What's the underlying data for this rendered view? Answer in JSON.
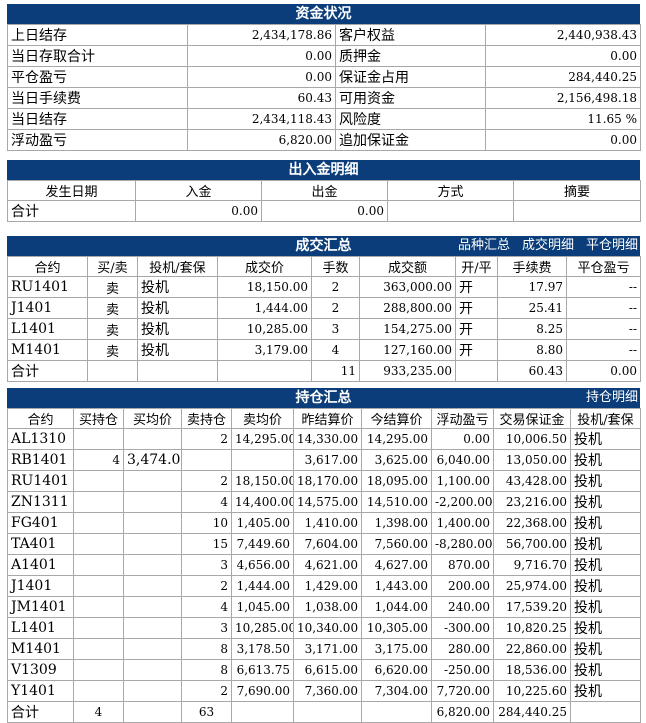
{
  "funds": {
    "title": "资金状况",
    "rows": [
      [
        "上日结存",
        "2,434,178.86",
        "客户权益",
        "2,440,938.43"
      ],
      [
        "当日存取合计",
        "0.00",
        "质押金",
        "0.00"
      ],
      [
        "平仓盈亏",
        "0.00",
        "保证金占用",
        "284,440.25"
      ],
      [
        "当日手续费",
        "60.43",
        "可用资金",
        "2,156,498.18"
      ],
      [
        "当日结存",
        "2,434,118.43",
        "风险度",
        "11.65 %"
      ],
      [
        "浮动盈亏",
        "6,820.00",
        "追加保证金",
        "0.00"
      ]
    ]
  },
  "inout": {
    "title": "出入金明细",
    "headers": [
      "发生日期",
      "入金",
      "出金",
      "方式",
      "摘要"
    ],
    "total": [
      "合计",
      "0.00",
      "0.00",
      "",
      ""
    ]
  },
  "trades": {
    "title": "成交汇总",
    "links": [
      "品种汇总",
      "成交明细",
      "平仓明细"
    ],
    "headers": [
      "合约",
      "买/卖",
      "投机/套保",
      "成交价",
      "手数",
      "成交额",
      "开/平",
      "手续费",
      "平仓盈亏"
    ],
    "rows": [
      [
        "RU1401",
        "卖",
        "投机",
        "18,150.00",
        "2",
        "363,000.00",
        "开",
        "17.97",
        "--"
      ],
      [
        "J1401",
        "卖",
        "投机",
        "1,444.00",
        "2",
        "288,800.00",
        "开",
        "25.41",
        "--"
      ],
      [
        "L1401",
        "卖",
        "投机",
        "10,285.00",
        "3",
        "154,275.00",
        "开",
        "8.25",
        "--"
      ],
      [
        "M1401",
        "卖",
        "投机",
        "3,179.00",
        "4",
        "127,160.00",
        "开",
        "8.80",
        "--"
      ]
    ],
    "total": [
      "合计",
      "",
      "",
      "",
      "11",
      "933,235.00",
      "",
      "60.43",
      "0.00"
    ]
  },
  "positions": {
    "title": "持仓汇总",
    "links": [
      "持仓明细"
    ],
    "headers": [
      "合约",
      "买持仓",
      "买均价",
      "卖持仓",
      "卖均价",
      "昨结算价",
      "今结算价",
      "浮动盈亏",
      "交易保证金",
      "投机/套保"
    ],
    "rows": [
      [
        "AL1310",
        "",
        "",
        "2",
        "14,295.00",
        "14,330.00",
        "14,295.00",
        "0.00",
        "10,006.50",
        "投机"
      ],
      [
        "RB1401",
        "4",
        "3,474.00",
        "",
        "",
        "3,617.00",
        "3,625.00",
        "6,040.00",
        "13,050.00",
        "投机"
      ],
      [
        "RU1401",
        "",
        "",
        "2",
        "18,150.00",
        "18,170.00",
        "18,095.00",
        "1,100.00",
        "43,428.00",
        "投机"
      ],
      [
        "ZN1311",
        "",
        "",
        "4",
        "14,400.00",
        "14,575.00",
        "14,510.00",
        "-2,200.00",
        "23,216.00",
        "投机"
      ],
      [
        "FG401",
        "",
        "",
        "10",
        "1,405.00",
        "1,410.00",
        "1,398.00",
        "1,400.00",
        "22,368.00",
        "投机"
      ],
      [
        "TA401",
        "",
        "",
        "15",
        "7,449.60",
        "7,604.00",
        "7,560.00",
        "-8,280.00",
        "56,700.00",
        "投机"
      ],
      [
        "A1401",
        "",
        "",
        "3",
        "4,656.00",
        "4,621.00",
        "4,627.00",
        "870.00",
        "9,716.70",
        "投机"
      ],
      [
        "J1401",
        "",
        "",
        "2",
        "1,444.00",
        "1,429.00",
        "1,443.00",
        "200.00",
        "25,974.00",
        "投机"
      ],
      [
        "JM1401",
        "",
        "",
        "4",
        "1,045.00",
        "1,038.00",
        "1,044.00",
        "240.00",
        "17,539.20",
        "投机"
      ],
      [
        "L1401",
        "",
        "",
        "3",
        "10,285.00",
        "10,340.00",
        "10,305.00",
        "-300.00",
        "10,820.25",
        "投机"
      ],
      [
        "M1401",
        "",
        "",
        "8",
        "3,178.50",
        "3,171.00",
        "3,175.00",
        "280.00",
        "22,860.00",
        "投机"
      ],
      [
        "V1309",
        "",
        "",
        "8",
        "6,613.75",
        "6,615.00",
        "6,620.00",
        "-250.00",
        "18,536.00",
        "投机"
      ],
      [
        "Y1401",
        "",
        "",
        "2",
        "7,690.00",
        "7,360.00",
        "7,304.00",
        "7,720.00",
        "10,225.60",
        "投机"
      ]
    ],
    "total": [
      "合计",
      "4",
      "",
      "63",
      "",
      "",
      "",
      "6,820.00",
      "284,440.25",
      ""
    ]
  }
}
